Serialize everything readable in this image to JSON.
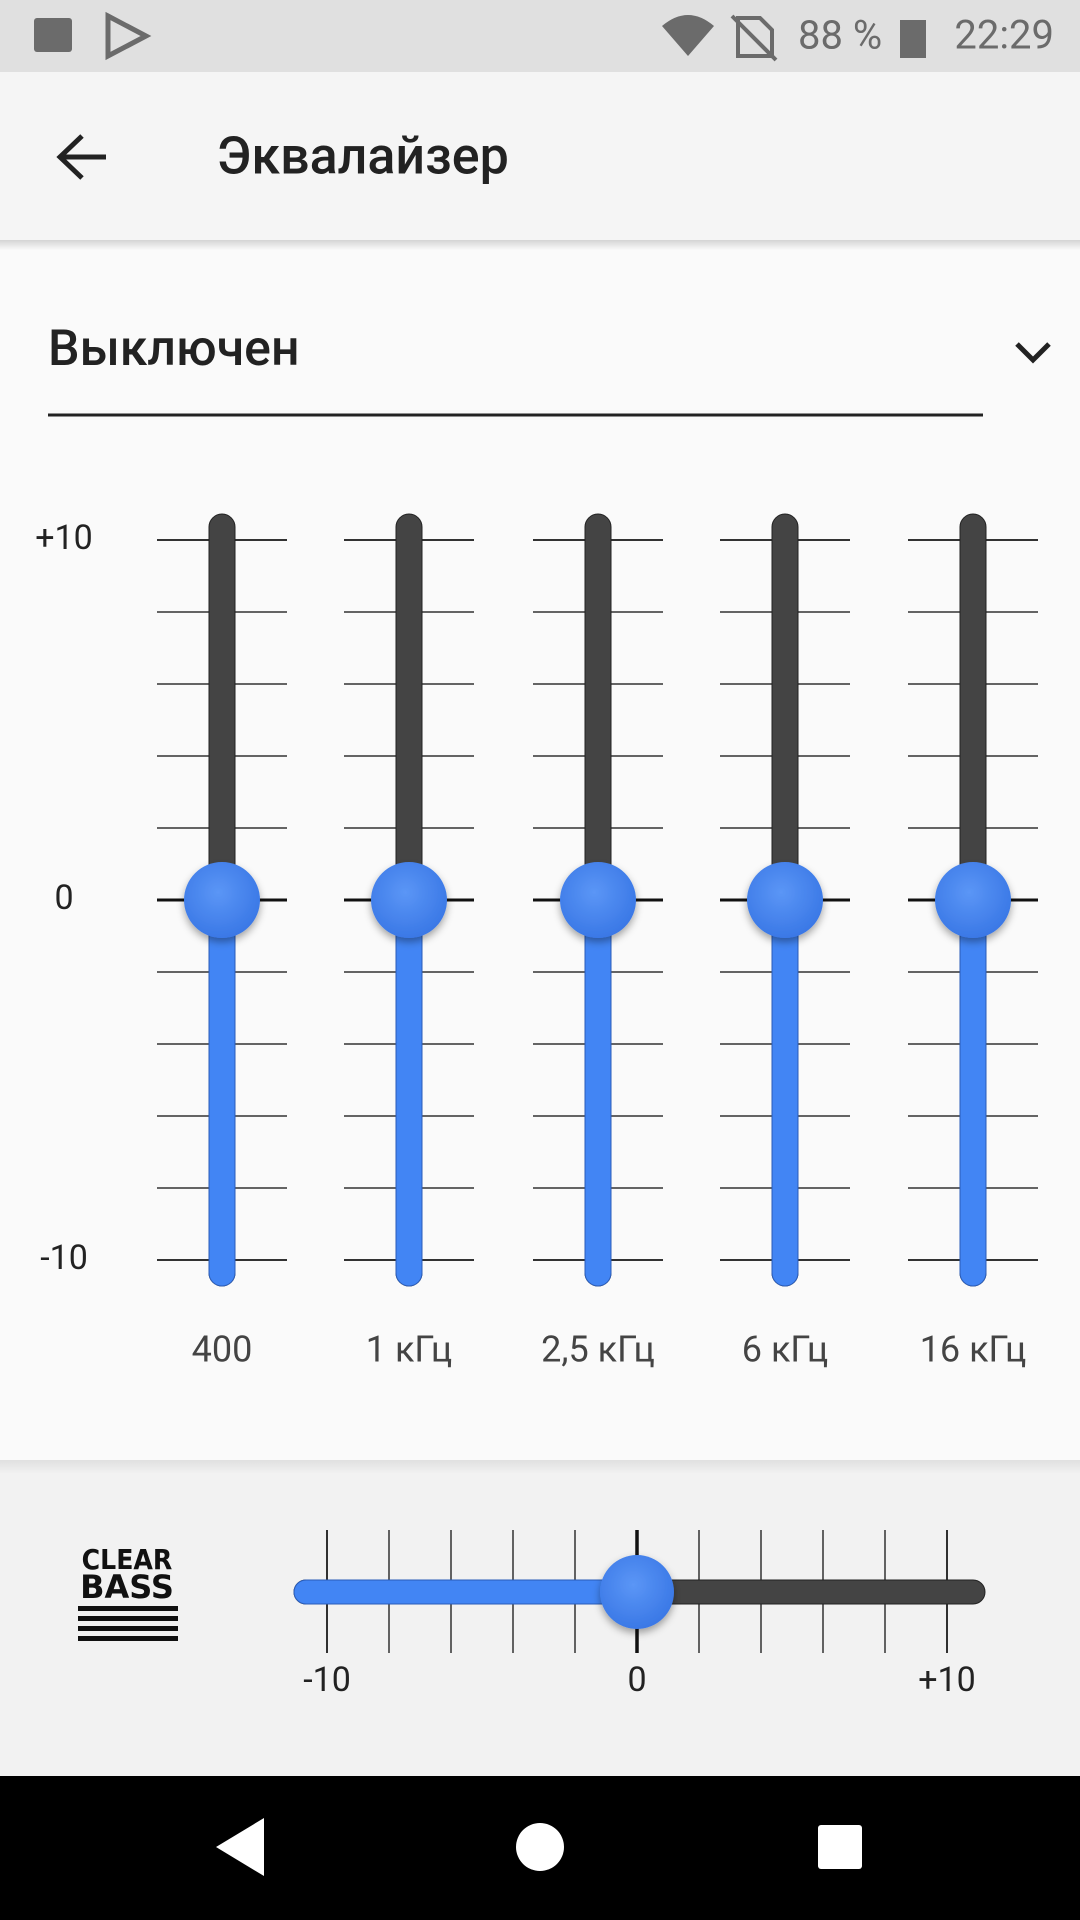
{
  "status_bar": {
    "battery": "88 %",
    "time": "22:29"
  },
  "app_bar": {
    "title": "Эквалайзер"
  },
  "preset": {
    "selected": "Выключен"
  },
  "equalizer": {
    "scale": [
      {
        "value": 10,
        "label": "+10"
      },
      0,
      -10
    ],
    "bands": [
      {
        "label": "400",
        "value": 0
      },
      {
        "label": "1 кГц",
        "value": 0
      },
      {
        "label": "2,5 кГц",
        "value": 0
      },
      {
        "label": "6 кГц",
        "value": 0
      },
      {
        "label": "16 кГц",
        "value": 0
      }
    ]
  },
  "clear_bass": {
    "logo": {
      "line1": "CLEAR",
      "line2": "BASS"
    },
    "value": 0,
    "scale": [
      -10,
      0,
      {
        "value": 10,
        "label": "+10"
      }
    ]
  }
}
